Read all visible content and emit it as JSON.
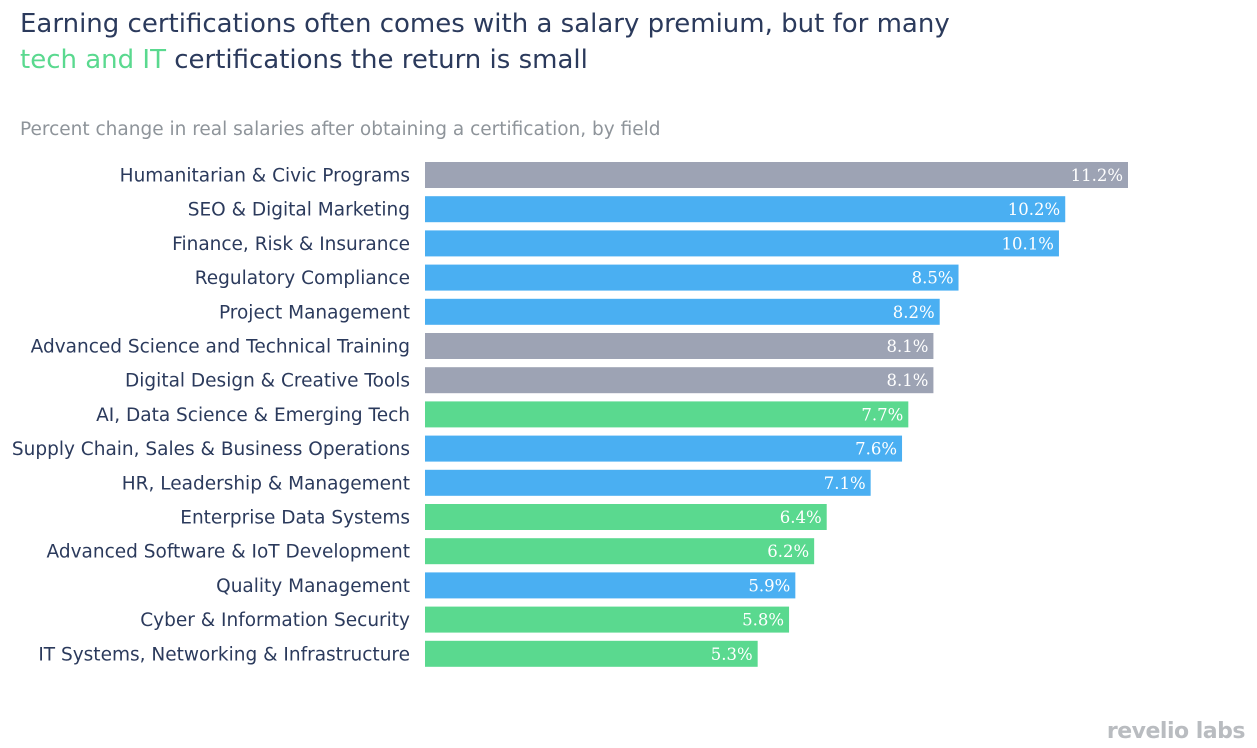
{
  "title": {
    "line1": "Earning certifications often comes with a salary premium, but for many",
    "highlight": "tech and IT",
    "line2_rest": " certifications the return is small"
  },
  "subtitle": "Percent change in real salaries after obtaining a certification, by field",
  "logo": "revelio labs",
  "colors": {
    "gray": "#9da3b4",
    "blue": "#4aaff2",
    "green": "#5ad98f"
  },
  "chart_data": {
    "type": "bar",
    "orientation": "horizontal",
    "categories": [
      "Humanitarian & Civic Programs",
      "SEO & Digital Marketing",
      "Finance, Risk & Insurance",
      "Regulatory Compliance",
      "Project Management",
      "Advanced Science and Technical Training",
      "Digital Design & Creative Tools",
      "AI, Data Science & Emerging Tech",
      "Supply Chain, Sales & Business Operations",
      "HR, Leadership & Management",
      "Enterprise Data Systems",
      "Advanced Software & IoT Development",
      "Quality Management",
      "Cyber & Information Security",
      "IT Systems, Networking & Infrastructure"
    ],
    "values": [
      11.2,
      10.2,
      10.1,
      8.5,
      8.2,
      8.1,
      8.1,
      7.7,
      7.6,
      7.1,
      6.4,
      6.2,
      5.9,
      5.8,
      5.3
    ],
    "value_labels": [
      "11.2%",
      "10.2%",
      "10.1%",
      "8.5%",
      "8.2%",
      "8.1%",
      "8.1%",
      "7.7%",
      "7.6%",
      "7.1%",
      "6.4%",
      "6.2%",
      "5.9%",
      "5.8%",
      "5.3%"
    ],
    "bar_colors": [
      "gray",
      "blue",
      "blue",
      "blue",
      "blue",
      "gray",
      "gray",
      "green",
      "blue",
      "blue",
      "green",
      "green",
      "blue",
      "green",
      "green"
    ],
    "xlim": [
      0,
      11.2
    ],
    "xlabel": "",
    "ylabel": "",
    "grid": false,
    "legend": false
  }
}
